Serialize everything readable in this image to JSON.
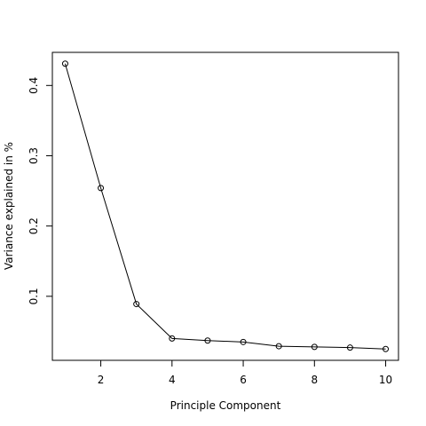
{
  "chart_data": {
    "type": "line",
    "title": "",
    "xlabel": "Principle Component",
    "ylabel": "Variance explained in %",
    "x": [
      1,
      2,
      3,
      4,
      5,
      6,
      7,
      8,
      9,
      10
    ],
    "series": [
      {
        "values": [
          0.431,
          0.254,
          0.089,
          0.04,
          0.037,
          0.035,
          0.029,
          0.028,
          0.027,
          0.025
        ]
      }
    ],
    "xlim": [
      0.64,
      10.36
    ],
    "ylim": [
      0.0089,
      0.4471
    ],
    "xticks": [
      2,
      4,
      6,
      8,
      10
    ],
    "xtick_labels": [
      "2",
      "4",
      "6",
      "8",
      "10"
    ],
    "yticks": [
      0.1,
      0.2,
      0.3,
      0.4
    ],
    "ytick_labels": [
      "0.1",
      "0.2",
      "0.3",
      "0.4"
    ],
    "markers": "open-circle",
    "grid": false,
    "legend": "none"
  }
}
